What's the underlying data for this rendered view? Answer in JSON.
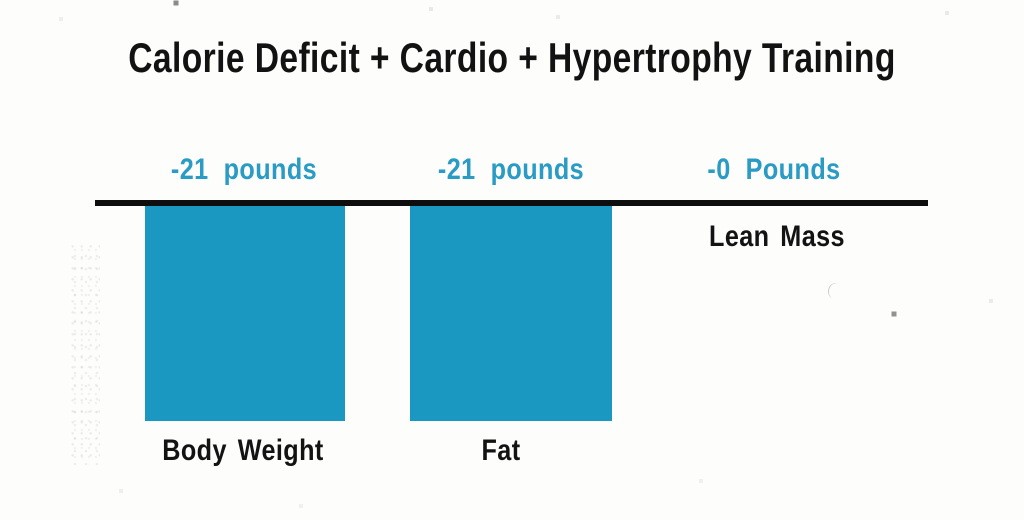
{
  "chart_data": {
    "type": "bar",
    "title": "Calorie Deficit + Cardio + Hypertrophy Training",
    "categories": [
      "Body Weight",
      "Fat",
      "Lean Mass"
    ],
    "values": [
      -21,
      -21,
      0
    ],
    "value_labels": [
      "-21 pounds",
      "-21 pounds",
      "-0 Pounds"
    ],
    "unit": "pounds",
    "ylim": [
      -21,
      0
    ],
    "orientation": "vertical, bars extend downward from zero baseline",
    "grid": false,
    "legend_position": "none",
    "colors": {
      "bar": "#1b98c2",
      "value_label": "#2a9bc4",
      "category_label": "#131313",
      "baseline": "#0e0e0e",
      "background": "#fdfdfc"
    }
  }
}
